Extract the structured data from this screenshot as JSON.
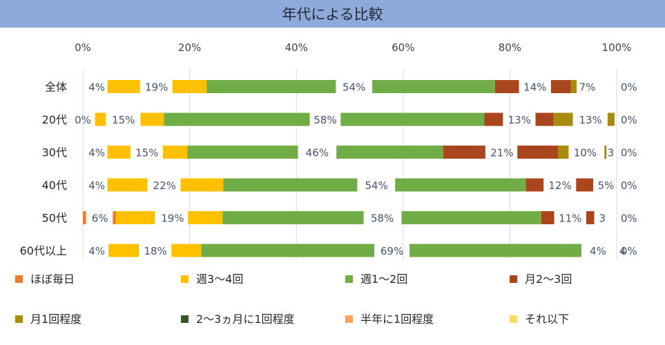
{
  "chart_data": {
    "type": "bar",
    "orientation": "horizontal",
    "stacked": "percent",
    "title": "年代による比較",
    "xlim": [
      0,
      100
    ],
    "x_ticks": [
      "0%",
      "20%",
      "40%",
      "60%",
      "80%",
      "100%"
    ],
    "categories": [
      "全体",
      "20代",
      "30代",
      "40代",
      "50代",
      "60代以上"
    ],
    "series": [
      {
        "name": "ほぼ毎日",
        "color": "#ed7d31",
        "values": [
          0.5,
          0,
          0.4,
          0.3,
          0.6,
          0.3
        ]
      },
      {
        "name": "週3〜4回",
        "color": "#ffc000",
        "values": [
          4,
          0.1,
          4,
          4,
          6,
          4
        ]
      },
      {
        "name": "週1〜2回",
        "color": "#70ad47",
        "values": [
          19,
          15,
          15,
          22,
          19,
          18
        ]
      },
      {
        "name": "月2〜3回",
        "color": "#a9461d",
        "values": [
          54,
          58,
          46,
          54,
          58,
          69
        ]
      },
      {
        "name": "月1回程度",
        "color": "#a88b0f",
        "values": [
          14,
          13,
          21,
          12,
          11,
          4
        ]
      },
      {
        "name": "2〜3ヵ月に1回程度",
        "color": "#375623",
        "values": [
          7,
          13,
          10,
          5,
          3,
          4
        ]
      },
      {
        "name": "半年に1回程度",
        "color": "#f4a460",
        "values": [
          0.5,
          0.9,
          3,
          1.7,
          2.4,
          0.7
        ]
      },
      {
        "name": "それ以下",
        "color": "#ffd966",
        "values": [
          0,
          0,
          0,
          0,
          0,
          0
        ]
      }
    ],
    "segments": [
      [
        {
          "c": "#ffc000",
          "s": 4.6,
          "e": 10.7
        },
        {
          "c": "#ffc000",
          "s": 16.8,
          "e": 23.2
        },
        {
          "c": "#70ad47",
          "s": 23.2,
          "e": 47.4
        },
        {
          "c": "#70ad47",
          "s": 54.2,
          "e": 77.2
        },
        {
          "c": "#a9461d",
          "s": 77.2,
          "e": 81.7
        },
        {
          "c": "#a9461d",
          "s": 87.7,
          "e": 91.4
        },
        {
          "c": "#a88b0f",
          "s": 91.4,
          "e": 92.5
        }
      ],
      [
        {
          "c": "#ffc000",
          "s": 2.3,
          "e": 4.3
        },
        {
          "c": "#ffc000",
          "s": 10.8,
          "e": 15.2
        },
        {
          "c": "#70ad47",
          "s": 15.2,
          "e": 42.5
        },
        {
          "c": "#70ad47",
          "s": 48.3,
          "e": 75.2
        },
        {
          "c": "#a9461d",
          "s": 75.2,
          "e": 78.7
        },
        {
          "c": "#a9461d",
          "s": 84.8,
          "e": 88.2
        },
        {
          "c": "#a88b0f",
          "s": 88.2,
          "e": 91.8
        },
        {
          "c": "#a88b0f",
          "s": 98.3,
          "e": 99.6
        }
      ],
      [
        {
          "c": "#ffc000",
          "s": 4.6,
          "e": 8.9
        },
        {
          "c": "#ffc000",
          "s": 15.0,
          "e": 19.6
        },
        {
          "c": "#70ad47",
          "s": 19.6,
          "e": 40.3
        },
        {
          "c": "#70ad47",
          "s": 47.5,
          "e": 67.5
        },
        {
          "c": "#a9461d",
          "s": 67.5,
          "e": 75.4
        },
        {
          "c": "#a9461d",
          "s": 81.4,
          "e": 89.0
        },
        {
          "c": "#a88b0f",
          "s": 89.0,
          "e": 91.0
        },
        {
          "c": "#a88b0f",
          "s": 97.7,
          "e": 98.1
        }
      ],
      [
        {
          "c": "#ffc000",
          "s": 4.6,
          "e": 12.1
        },
        {
          "c": "#ffc000",
          "s": 18.3,
          "e": 26.3
        },
        {
          "c": "#70ad47",
          "s": 26.3,
          "e": 51.4
        },
        {
          "c": "#70ad47",
          "s": 58.5,
          "e": 83.0
        },
        {
          "c": "#a9461d",
          "s": 83.0,
          "e": 86.3
        },
        {
          "c": "#a9461d",
          "s": 92.4,
          "e": 95.6
        }
      ],
      [
        {
          "c": "#ed7d31",
          "s": 0.0,
          "e": 0.6
        },
        {
          "c": "#ed7d31",
          "s": 5.6,
          "e": 6.2
        },
        {
          "c": "#ffc000",
          "s": 6.2,
          "e": 13.5
        },
        {
          "c": "#ffc000",
          "s": 19.7,
          "e": 26.2
        },
        {
          "c": "#70ad47",
          "s": 26.2,
          "e": 52.6
        },
        {
          "c": "#70ad47",
          "s": 59.7,
          "e": 85.9
        },
        {
          "c": "#a9461d",
          "s": 85.9,
          "e": 88.3
        },
        {
          "c": "#a9461d",
          "s": 94.3,
          "e": 95.8
        }
      ],
      [
        {
          "c": "#ffc000",
          "s": 4.8,
          "e": 10.5
        },
        {
          "c": "#ffc000",
          "s": 16.6,
          "e": 22.2
        },
        {
          "c": "#70ad47",
          "s": 22.2,
          "e": 54.6
        },
        {
          "c": "#70ad47",
          "s": 61.2,
          "e": 93.4
        }
      ]
    ],
    "data_labels": [
      [
        {
          "t": "4%",
          "x": 2.6
        },
        {
          "t": "19%",
          "x": 13.8
        },
        {
          "t": "54%",
          "x": 50.8
        },
        {
          "t": "14%",
          "x": 84.7
        },
        {
          "t": "7%",
          "x": 94.5
        },
        {
          "t": "0%",
          "x": 102.3
        }
      ],
      [
        {
          "t": "0%",
          "x": 0.0
        },
        {
          "t": "15%",
          "x": 7.6
        },
        {
          "t": "58%",
          "x": 45.4
        },
        {
          "t": "13%",
          "x": 81.8
        },
        {
          "t": "13%",
          "x": 95.1
        },
        {
          "t": "0%",
          "x": 102.3
        }
      ],
      [
        {
          "t": "4%",
          "x": 2.6
        },
        {
          "t": "15%",
          "x": 12.0
        },
        {
          "t": "46%",
          "x": 43.9
        },
        {
          "t": "21%",
          "x": 78.5
        },
        {
          "t": "10%",
          "x": 94.1
        },
        {
          "t": "3",
          "x": 98.9
        },
        {
          "t": "0%",
          "x": 102.3
        }
      ],
      [
        {
          "t": "4%",
          "x": 2.6
        },
        {
          "t": "22%",
          "x": 15.3
        },
        {
          "t": "54%",
          "x": 55.0
        },
        {
          "t": "12%",
          "x": 89.4
        },
        {
          "t": "5%",
          "x": 98.0
        },
        {
          "t": "0%",
          "x": 102.3
        }
      ],
      [
        {
          "t": "6%",
          "x": 3.2
        },
        {
          "t": "19%",
          "x": 16.8
        },
        {
          "t": "58%",
          "x": 56.1
        },
        {
          "t": "11%",
          "x": 91.3
        },
        {
          "t": "3",
          "x": 97.3
        },
        {
          "t": "0%",
          "x": 102.3
        }
      ],
      [
        {
          "t": "4%",
          "x": 2.6
        },
        {
          "t": "18%",
          "x": 13.6
        },
        {
          "t": "69%",
          "x": 57.9
        },
        {
          "t": "4%",
          "x": 96.5
        },
        {
          "t": "4",
          "x": 101.1
        },
        {
          "t": "0%",
          "x": 102.3
        }
      ]
    ],
    "legend": {
      "position": "bottom"
    }
  }
}
